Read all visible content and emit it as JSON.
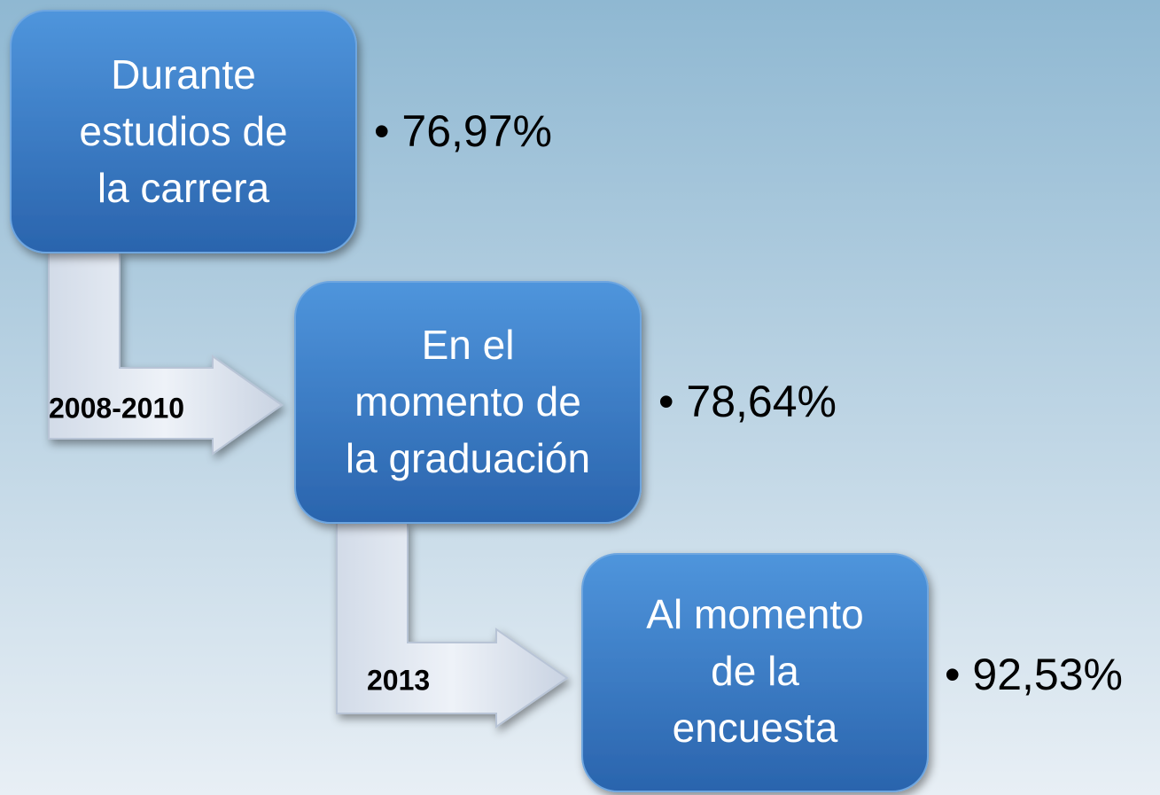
{
  "nodes": [
    {
      "lines": [
        "Durante",
        "estudios de",
        "la carrera"
      ],
      "bullet": "• 76,97%"
    },
    {
      "lines": [
        "En el",
        "momento de",
        "la graduación"
      ],
      "bullet": "• 78,64%"
    },
    {
      "lines": [
        "Al momento",
        "de la",
        "encuesta"
      ],
      "bullet": "• 92,53%"
    }
  ],
  "arrows": [
    {
      "label": "2008-2010"
    },
    {
      "label": "2013"
    }
  ]
}
